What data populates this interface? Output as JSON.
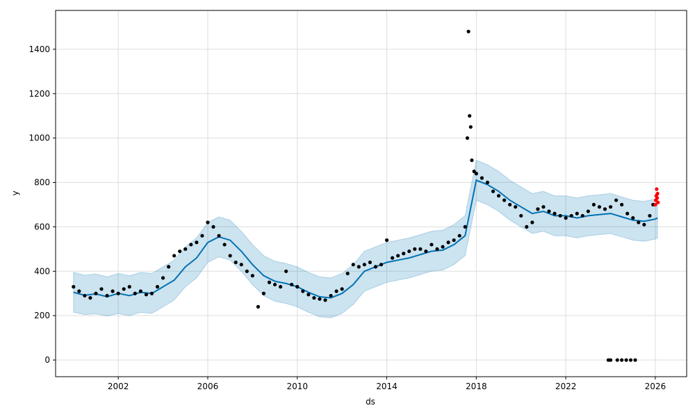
{
  "chart_data": {
    "type": "scatter",
    "xlabel": "ds",
    "ylabel": "y",
    "xlim": [
      1999.2,
      2027.4
    ],
    "ylim": [
      -75,
      1575
    ],
    "grid": true,
    "x_ticks": [
      "2002",
      "2006",
      "2010",
      "2014",
      "2018",
      "2022",
      "2026"
    ],
    "x_tick_values": [
      2002,
      2006,
      2010,
      2014,
      2018,
      2022,
      2026
    ],
    "y_ticks": [
      "0",
      "200",
      "400",
      "600",
      "800",
      "1000",
      "1200",
      "1400"
    ],
    "y_tick_values": [
      0,
      200,
      400,
      600,
      800,
      1000,
      1200,
      1400
    ],
    "colors": {
      "observed": "#000000",
      "recent": "#ff0000",
      "forecast_line": "#0072B2",
      "uncertainty_band": "#0072B2",
      "grid": "#dddddd"
    },
    "forecast": {
      "x": [
        2000.0,
        2000.5,
        2001.0,
        2001.5,
        2002.0,
        2002.5,
        2003.0,
        2003.5,
        2004.0,
        2004.5,
        2005.0,
        2005.5,
        2006.0,
        2006.5,
        2007.0,
        2007.5,
        2008.0,
        2008.5,
        2009.0,
        2009.5,
        2010.0,
        2010.5,
        2011.0,
        2011.5,
        2012.0,
        2012.5,
        2013.0,
        2013.5,
        2014.0,
        2014.5,
        2015.0,
        2015.5,
        2016.0,
        2016.5,
        2017.0,
        2017.5,
        2018.0,
        2018.5,
        2019.0,
        2019.5,
        2020.0,
        2020.5,
        2021.0,
        2021.5,
        2022.0,
        2022.5,
        2023.0,
        2023.5,
        2024.0,
        2024.5,
        2025.0,
        2025.5,
        2026.0,
        2026.1
      ],
      "yhat": [
        305,
        292,
        298,
        285,
        300,
        290,
        305,
        300,
        330,
        360,
        420,
        460,
        530,
        555,
        540,
        490,
        430,
        380,
        355,
        345,
        330,
        305,
        285,
        280,
        300,
        340,
        400,
        420,
        440,
        450,
        460,
        475,
        490,
        495,
        520,
        560,
        810,
        790,
        760,
        720,
        690,
        660,
        670,
        650,
        650,
        640,
        650,
        655,
        660,
        645,
        630,
        625,
        635,
        640
      ],
      "lower": [
        215,
        205,
        208,
        198,
        210,
        200,
        215,
        210,
        240,
        270,
        330,
        370,
        440,
        465,
        450,
        400,
        340,
        290,
        265,
        255,
        240,
        215,
        195,
        190,
        210,
        250,
        310,
        330,
        350,
        360,
        370,
        385,
        400,
        405,
        430,
        470,
        720,
        700,
        670,
        630,
        600,
        570,
        580,
        560,
        560,
        550,
        560,
        565,
        570,
        555,
        540,
        535,
        545,
        550
      ],
      "upper": [
        395,
        382,
        388,
        375,
        390,
        380,
        395,
        390,
        420,
        450,
        510,
        550,
        620,
        645,
        630,
        580,
        520,
        470,
        445,
        435,
        420,
        395,
        375,
        370,
        390,
        430,
        490,
        510,
        530,
        540,
        550,
        565,
        580,
        585,
        610,
        650,
        900,
        880,
        850,
        810,
        780,
        750,
        760,
        740,
        740,
        730,
        740,
        745,
        750,
        735,
        720,
        715,
        725,
        730
      ]
    },
    "observed": {
      "x": [
        2000.0,
        2000.25,
        2000.5,
        2000.75,
        2001.0,
        2001.25,
        2001.5,
        2001.75,
        2002.0,
        2002.25,
        2002.5,
        2002.75,
        2003.0,
        2003.25,
        2003.5,
        2003.75,
        2004.0,
        2004.25,
        2004.5,
        2004.75,
        2005.0,
        2005.25,
        2005.5,
        2005.75,
        2006.0,
        2006.25,
        2006.5,
        2006.75,
        2007.0,
        2007.25,
        2007.5,
        2007.75,
        2008.0,
        2008.25,
        2008.5,
        2008.75,
        2009.0,
        2009.25,
        2009.5,
        2009.75,
        2010.0,
        2010.25,
        2010.5,
        2010.75,
        2011.0,
        2011.25,
        2011.5,
        2011.75,
        2012.0,
        2012.25,
        2012.5,
        2012.75,
        2013.0,
        2013.25,
        2013.5,
        2013.75,
        2014.0,
        2014.25,
        2014.5,
        2014.75,
        2015.0,
        2015.25,
        2015.5,
        2015.75,
        2016.0,
        2016.25,
        2016.5,
        2016.75,
        2017.0,
        2017.25,
        2017.5,
        2017.6,
        2017.65,
        2017.7,
        2017.75,
        2017.8,
        2017.9,
        2018.0,
        2018.25,
        2018.5,
        2018.75,
        2019.0,
        2019.25,
        2019.5,
        2019.75,
        2020.0,
        2020.25,
        2020.5,
        2020.75,
        2021.0,
        2021.25,
        2021.5,
        2021.75,
        2022.0,
        2022.25,
        2022.5,
        2022.75,
        2023.0,
        2023.25,
        2023.5,
        2023.75,
        2024.0,
        2024.25,
        2024.5,
        2024.75,
        2025.0,
        2025.25,
        2025.5,
        2025.75,
        2025.9
      ],
      "y": [
        330,
        310,
        290,
        280,
        300,
        320,
        290,
        310,
        300,
        320,
        330,
        300,
        310,
        295,
        300,
        330,
        370,
        420,
        470,
        490,
        500,
        520,
        530,
        560,
        620,
        600,
        560,
        520,
        470,
        440,
        430,
        400,
        380,
        240,
        300,
        350,
        340,
        330,
        400,
        340,
        330,
        310,
        295,
        280,
        275,
        270,
        290,
        310,
        320,
        390,
        430,
        420,
        430,
        440,
        420,
        430,
        540,
        460,
        470,
        480,
        490,
        500,
        500,
        490,
        520,
        500,
        510,
        530,
        540,
        560,
        600,
        1000,
        1480,
        1100,
        1050,
        900,
        850,
        840,
        820,
        800,
        760,
        740,
        720,
        700,
        690,
        650,
        600,
        620,
        680,
        690,
        670,
        660,
        650,
        640,
        650,
        660,
        650,
        670,
        700,
        690,
        680,
        690,
        720,
        700,
        660,
        640,
        620,
        610,
        650,
        700
      ]
    },
    "observed_zero": {
      "x": [
        2023.9,
        2024.0,
        2024.3,
        2024.5,
        2024.7,
        2024.9,
        2025.1
      ],
      "y": [
        0,
        0,
        0,
        0,
        0,
        0,
        0
      ]
    },
    "recent": {
      "x": [
        2026.0,
        2026.02,
        2026.04,
        2026.06,
        2026.08,
        2026.1,
        2026.12
      ],
      "y": [
        700,
        720,
        740,
        770,
        730,
        750,
        710
      ]
    }
  }
}
